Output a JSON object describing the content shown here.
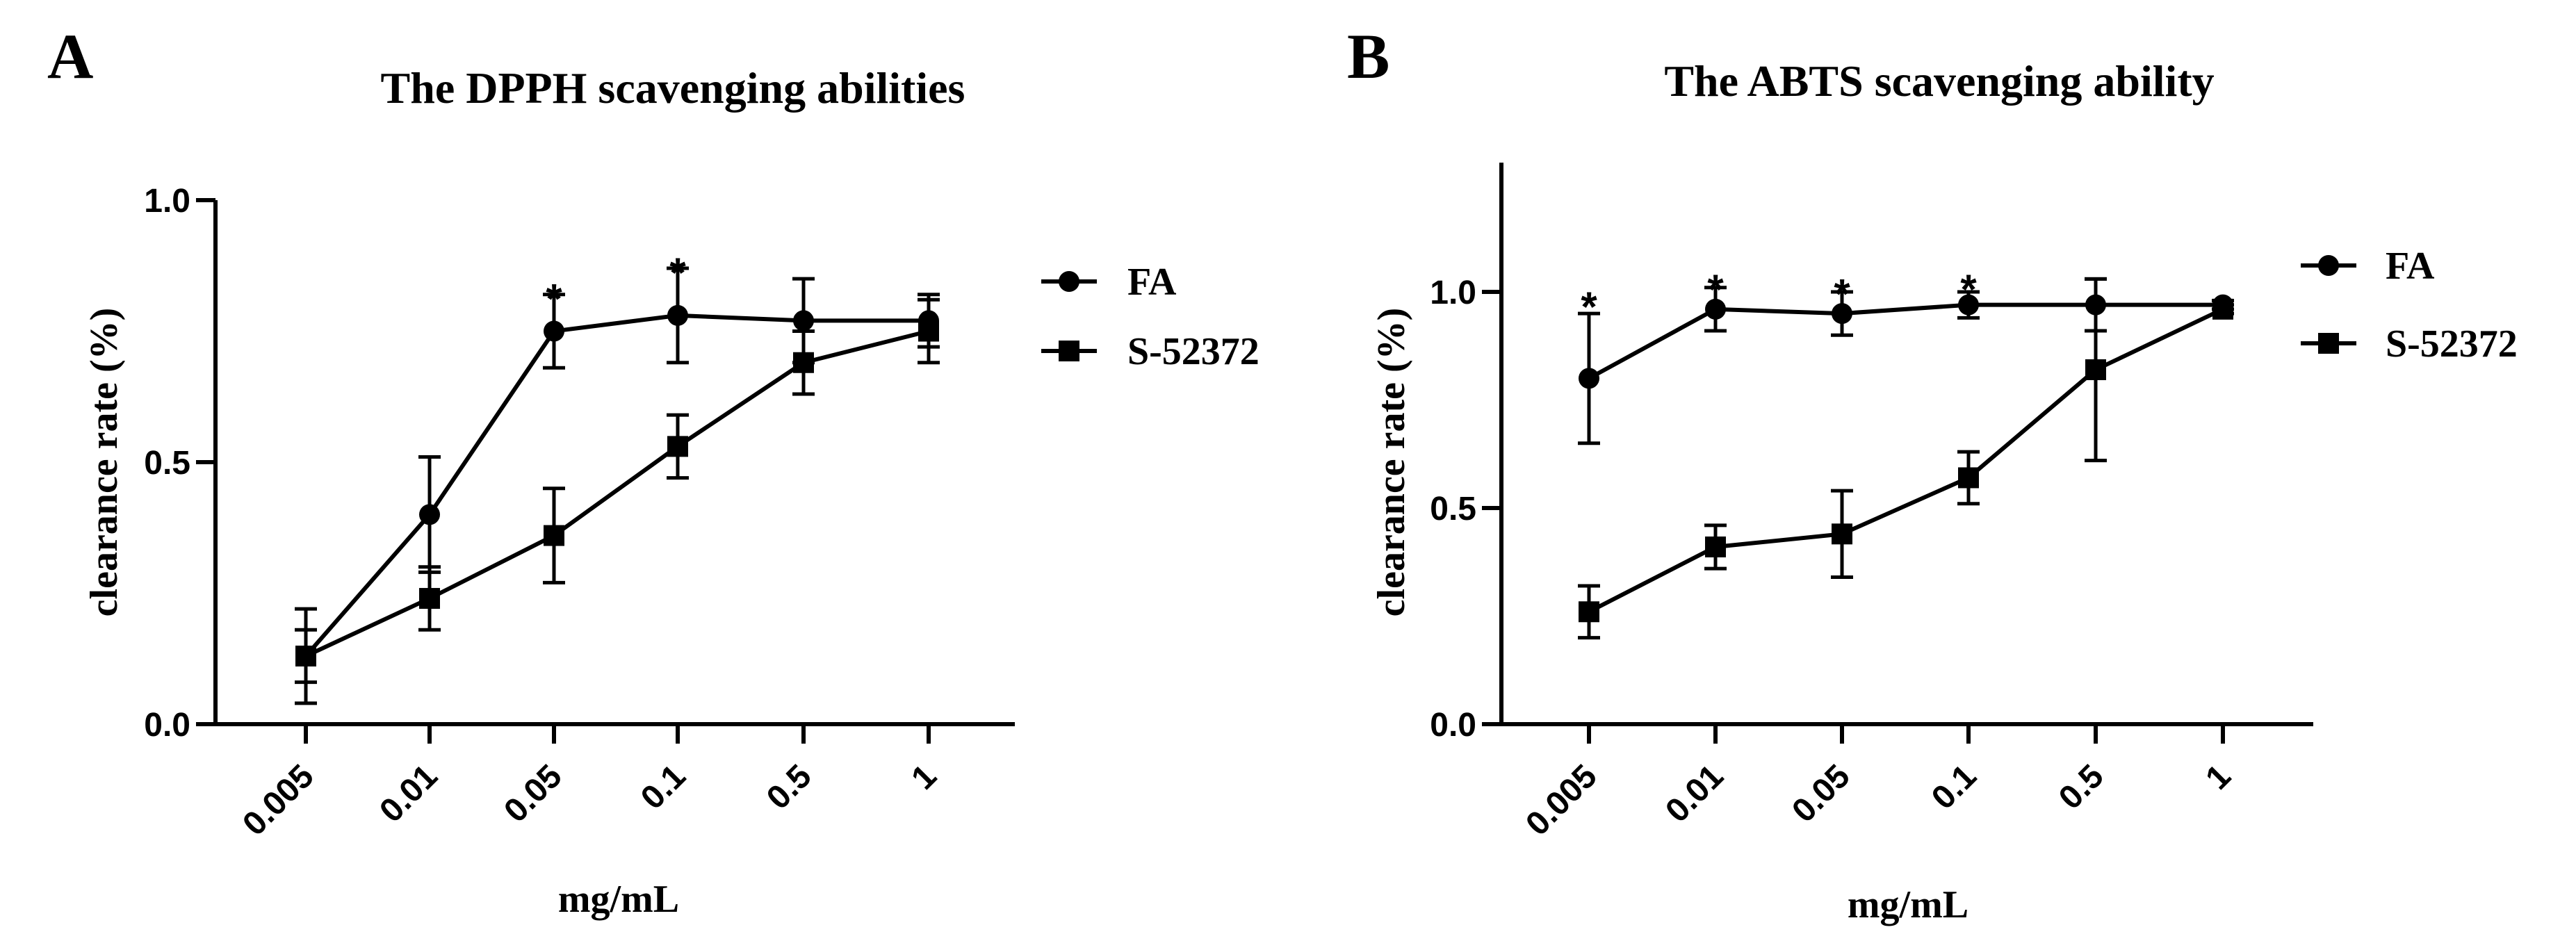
{
  "chart_data": [
    {
      "panel_label": "A",
      "type": "line",
      "title": "The DPPH scavenging abilities",
      "xlabel": "mg/mL",
      "ylabel": "clearance rate (%)",
      "categories": [
        "0.005",
        "0.01",
        "0.05",
        "0.1",
        "0.5",
        "1"
      ],
      "ylim": [
        0,
        1.0
      ],
      "y_ticks": [
        0.0,
        0.5,
        1.0
      ],
      "y_tick_labels": [
        "0.0",
        "0.5",
        "1.0"
      ],
      "grid": false,
      "legend_position": "right",
      "series": [
        {
          "name": "FA",
          "marker": "circle",
          "values": [
            0.13,
            0.4,
            0.75,
            0.78,
            0.77,
            0.77
          ],
          "errors": [
            0.05,
            0.11,
            0.07,
            0.09,
            0.08,
            0.05
          ]
        },
        {
          "name": "S-52372",
          "marker": "square",
          "values": [
            0.13,
            0.24,
            0.36,
            0.53,
            0.69,
            0.75
          ],
          "errors": [
            0.09,
            0.06,
            0.09,
            0.06,
            0.06,
            0.06
          ]
        }
      ],
      "annotations": [
        {
          "category": "0.05",
          "text": "*",
          "y": 0.84
        },
        {
          "category": "0.1",
          "text": "*",
          "y": 0.89
        }
      ]
    },
    {
      "panel_label": "B",
      "type": "line",
      "title": "The ABTS scavenging ability",
      "xlabel": "mg/mL",
      "ylabel": "clearance rate (%)",
      "categories": [
        "0.005",
        "0.01",
        "0.05",
        "0.1",
        "0.5",
        "1"
      ],
      "ylim": [
        0,
        1.3
      ],
      "y_ticks": [
        0.0,
        0.5,
        1.0
      ],
      "y_tick_labels": [
        "0.0",
        "0.5",
        "1.0"
      ],
      "grid": false,
      "legend_position": "right",
      "series": [
        {
          "name": "FA",
          "marker": "circle",
          "values": [
            0.8,
            0.96,
            0.95,
            0.97,
            0.97,
            0.97
          ],
          "errors": [
            0.15,
            0.05,
            0.05,
            0.03,
            0.06,
            0.01
          ]
        },
        {
          "name": "S-52372",
          "marker": "square",
          "values": [
            0.26,
            0.41,
            0.44,
            0.57,
            0.82,
            0.96
          ],
          "errors": [
            0.06,
            0.05,
            0.1,
            0.06,
            0.21,
            0.01
          ]
        }
      ],
      "annotations": [
        {
          "category": "0.005",
          "text": "*",
          "y": 1.0
        },
        {
          "category": "0.01",
          "text": "*",
          "y": 1.04
        },
        {
          "category": "0.05",
          "text": "*",
          "y": 1.03
        },
        {
          "category": "0.1",
          "text": "*",
          "y": 1.04
        }
      ]
    }
  ]
}
